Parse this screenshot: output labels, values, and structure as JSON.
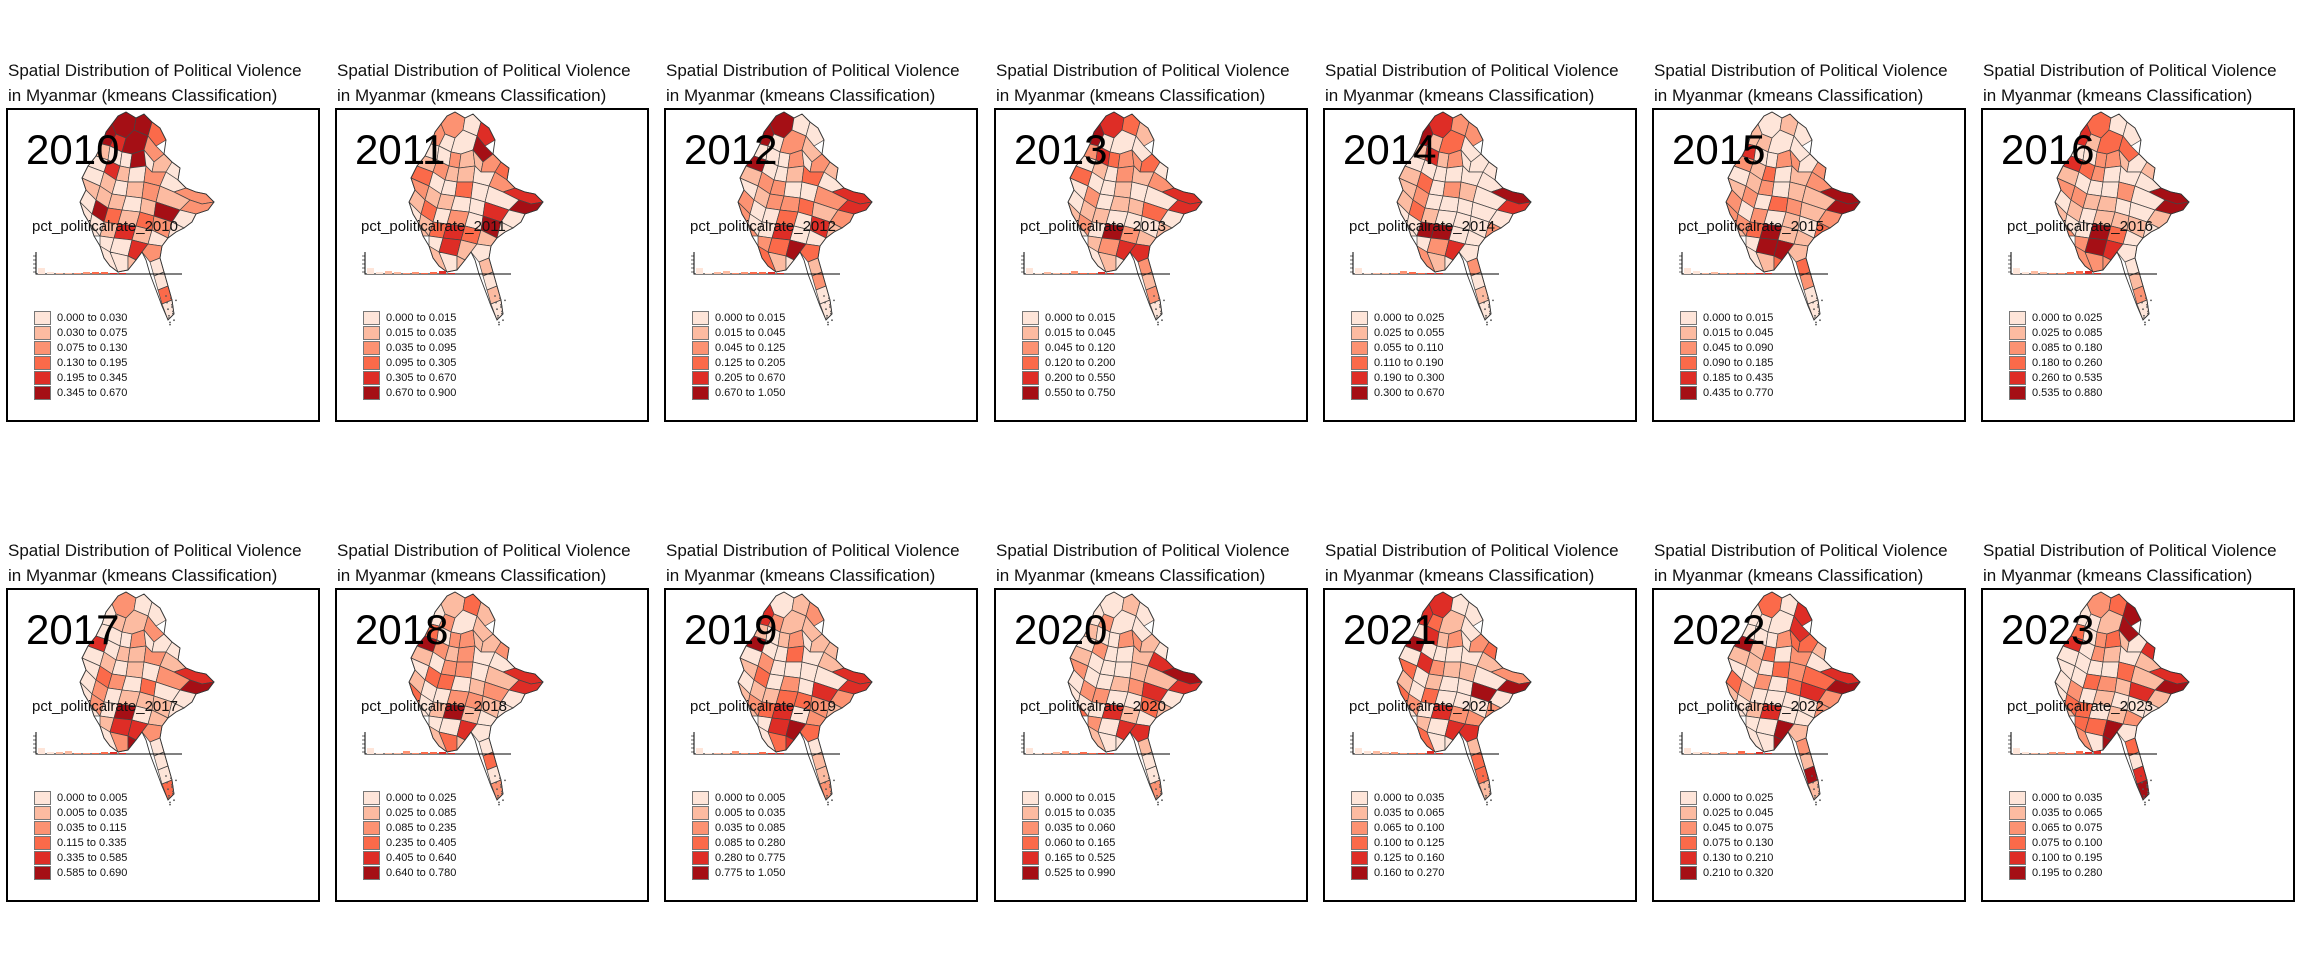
{
  "panel_title_line1": "Spatial Distribution of Political Violence",
  "panel_title_line2": "in Myanmar (kmeans Classification)",
  "palette": [
    "#fee5d9",
    "#fcbba1",
    "#fc9272",
    "#fb6a4a",
    "#de2d26",
    "#a50f15"
  ],
  "border_color": "#444444",
  "panels": [
    {
      "year": "2010",
      "variable": "pct_politicalrate_2010",
      "legend": [
        "0.000 to 0.030",
        "0.030 to 0.075",
        "0.075 to 0.130",
        "0.130 to 0.195",
        "0.195 to 0.345",
        "0.345 to 0.670"
      ]
    },
    {
      "year": "2011",
      "variable": "pct_politicalrate_2011",
      "legend": [
        "0.000 to 0.015",
        "0.015 to 0.035",
        "0.035 to 0.095",
        "0.095 to 0.305",
        "0.305 to 0.670",
        "0.670 to 0.900"
      ]
    },
    {
      "year": "2012",
      "variable": "pct_politicalrate_2012",
      "legend": [
        "0.000 to 0.015",
        "0.015 to 0.045",
        "0.045 to 0.125",
        "0.125 to 0.205",
        "0.205 to 0.670",
        "0.670 to 1.050"
      ]
    },
    {
      "year": "2013",
      "variable": "pct_politicalrate_2013",
      "legend": [
        "0.000 to 0.015",
        "0.015 to 0.045",
        "0.045 to 0.120",
        "0.120 to 0.200",
        "0.200 to 0.550",
        "0.550 to 0.750"
      ]
    },
    {
      "year": "2014",
      "variable": "pct_politicalrate_2014",
      "legend": [
        "0.000 to 0.025",
        "0.025 to 0.055",
        "0.055 to 0.110",
        "0.110 to 0.190",
        "0.190 to 0.300",
        "0.300 to 0.670"
      ]
    },
    {
      "year": "2015",
      "variable": "pct_politicalrate_2015",
      "legend": [
        "0.000 to 0.015",
        "0.015 to 0.045",
        "0.045 to 0.090",
        "0.090 to 0.185",
        "0.185 to 0.435",
        "0.435 to 0.770"
      ]
    },
    {
      "year": "2016",
      "variable": "pct_politicalrate_2016",
      "legend": [
        "0.000 to 0.025",
        "0.025 to 0.085",
        "0.085 to 0.180",
        "0.180 to 0.260",
        "0.260 to 0.535",
        "0.535 to 0.880"
      ]
    },
    {
      "year": "2017",
      "variable": "pct_politicalrate_2017",
      "legend": [
        "0.000 to 0.005",
        "0.005 to 0.035",
        "0.035 to 0.115",
        "0.115 to 0.335",
        "0.335 to 0.585",
        "0.585 to 0.690"
      ]
    },
    {
      "year": "2018",
      "variable": "pct_politicalrate_2018",
      "legend": [
        "0.000 to 0.025",
        "0.025 to 0.085",
        "0.085 to 0.235",
        "0.235 to 0.405",
        "0.405 to 0.640",
        "0.640 to 0.780"
      ]
    },
    {
      "year": "2019",
      "variable": "pct_politicalrate_2019",
      "legend": [
        "0.000 to 0.005",
        "0.005 to 0.035",
        "0.035 to 0.085",
        "0.085 to 0.280",
        "0.280 to 0.775",
        "0.775 to 1.050"
      ]
    },
    {
      "year": "2020",
      "variable": "pct_politicalrate_2020",
      "legend": [
        "0.000 to 0.015",
        "0.015 to 0.035",
        "0.035 to 0.060",
        "0.060 to 0.165",
        "0.165 to 0.525",
        "0.525 to 0.990"
      ]
    },
    {
      "year": "2021",
      "variable": "pct_politicalrate_2021",
      "legend": [
        "0.000 to 0.035",
        "0.035 to 0.065",
        "0.065 to 0.100",
        "0.100 to 0.125",
        "0.125 to 0.160",
        "0.160 to 0.270"
      ]
    },
    {
      "year": "2022",
      "variable": "pct_politicalrate_2022",
      "legend": [
        "0.000 to 0.025",
        "0.025 to 0.045",
        "0.045 to 0.075",
        "0.075 to 0.130",
        "0.130 to 0.210",
        "0.210 to 0.320"
      ]
    },
    {
      "year": "2023",
      "variable": "pct_politicalrate_2023",
      "legend": [
        "0.000 to 0.035",
        "0.035 to 0.065",
        "0.065 to 0.075",
        "0.075 to 0.100",
        "0.100 to 0.195",
        "0.195 to 0.280"
      ]
    }
  ]
}
